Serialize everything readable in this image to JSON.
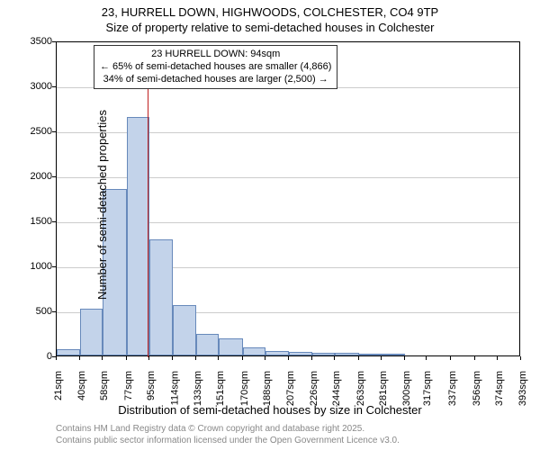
{
  "title_main": "23, HURRELL DOWN, HIGHWOODS, COLCHESTER, CO4 9TP",
  "title_sub": "Size of property relative to semi-detached houses in Colchester",
  "y_axis_label": "Number of semi-detached properties",
  "x_axis_label": "Distribution of semi-detached houses by size in Colchester",
  "chart": {
    "type": "histogram",
    "ylim": [
      0,
      3500
    ],
    "ytick_step": 500,
    "yticks": [
      0,
      500,
      1000,
      1500,
      2000,
      2500,
      3000,
      3500
    ],
    "xlim": [
      21,
      393
    ],
    "xticks": [
      21,
      40,
      58,
      77,
      95,
      114,
      133,
      151,
      170,
      188,
      207,
      226,
      244,
      263,
      281,
      300,
      317,
      337,
      356,
      374,
      393
    ],
    "xtick_unit": "sqm",
    "bar_fill": "#c3d3ea",
    "bar_stroke": "#6789bb",
    "grid_color": "#cccccc",
    "background_color": "#ffffff",
    "bins": [
      {
        "x": 21,
        "w": 19,
        "val": 70
      },
      {
        "x": 40,
        "w": 18,
        "val": 520
      },
      {
        "x": 58,
        "w": 19,
        "val": 1850
      },
      {
        "x": 77,
        "w": 18,
        "val": 2650
      },
      {
        "x": 95,
        "w": 19,
        "val": 1290
      },
      {
        "x": 114,
        "w": 19,
        "val": 560
      },
      {
        "x": 133,
        "w": 18,
        "val": 240
      },
      {
        "x": 151,
        "w": 19,
        "val": 190
      },
      {
        "x": 170,
        "w": 18,
        "val": 90
      },
      {
        "x": 188,
        "w": 19,
        "val": 55
      },
      {
        "x": 207,
        "w": 19,
        "val": 45
      },
      {
        "x": 226,
        "w": 18,
        "val": 35
      },
      {
        "x": 244,
        "w": 19,
        "val": 35
      },
      {
        "x": 263,
        "w": 18,
        "val": 10
      },
      {
        "x": 281,
        "w": 19,
        "val": 5
      },
      {
        "x": 300,
        "w": 17,
        "val": 0
      },
      {
        "x": 317,
        "w": 20,
        "val": 0
      },
      {
        "x": 337,
        "w": 19,
        "val": 0
      },
      {
        "x": 356,
        "w": 18,
        "val": 0
      },
      {
        "x": 374,
        "w": 19,
        "val": 0
      }
    ],
    "marker": {
      "x": 94,
      "color": "#c02020"
    }
  },
  "callout": {
    "line1": "23 HURRELL DOWN: 94sqm",
    "line2": "← 65% of semi-detached houses are smaller (4,866)",
    "line3": "34% of semi-detached houses are larger (2,500) →"
  },
  "attribution": {
    "line1": "Contains HM Land Registry data © Crown copyright and database right 2025.",
    "line2": "Contains public sector information licensed under the Open Government Licence v3.0."
  }
}
